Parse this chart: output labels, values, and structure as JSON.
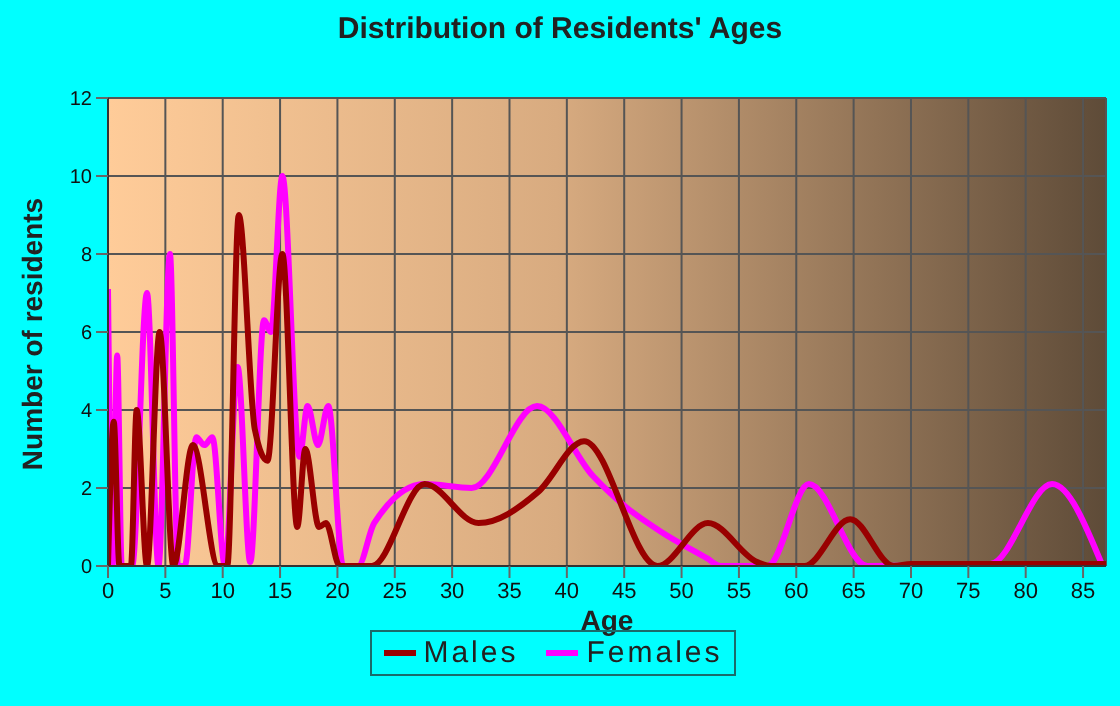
{
  "chart_data": {
    "type": "line",
    "title": "Distribution of Residents' Ages",
    "xlabel": "Age",
    "ylabel": "Number of residents",
    "xlim": [
      0,
      87
    ],
    "xticks": [
      0,
      5,
      10,
      15,
      20,
      25,
      30,
      35,
      40,
      45,
      50,
      55,
      60,
      65,
      70,
      75,
      80,
      85
    ],
    "ylim": [
      0,
      12
    ],
    "yticks": [
      0,
      2,
      4,
      6,
      8,
      10,
      12
    ],
    "grid": true,
    "legend": "bottom",
    "marker": "none",
    "line_style": "solid",
    "series": [
      {
        "name": "Males",
        "color": "#990000",
        "x": [
          0,
          0.5,
          1,
          2,
          2.5,
          3.4,
          4.5,
          5.7,
          7.4,
          9.6,
          10.4,
          11.4,
          12.8,
          13.9,
          15.2,
          16.5,
          17.2,
          18.4,
          19,
          20.2,
          23,
          27.6,
          32.3,
          37.5,
          41.5,
          47.9,
          52.3,
          56.6,
          57.8,
          60.7,
          64.7,
          68.5,
          70,
          80,
          87
        ],
        "values": [
          0,
          3.7,
          0,
          0,
          4,
          0,
          6,
          0,
          3.1,
          0,
          0,
          9,
          3.5,
          2.7,
          8,
          1,
          3,
          1,
          1.1,
          0,
          0,
          2.1,
          1.1,
          1.9,
          3.2,
          0,
          1.1,
          0.1,
          0,
          0,
          1.2,
          0,
          0.05,
          0.05,
          0.05
        ]
      },
      {
        "name": "Females",
        "color": "#ff00ff",
        "x": [
          0,
          0.4,
          0.8,
          1.2,
          2.1,
          3.4,
          4.4,
          5.4,
          6.1,
          6.7,
          7.7,
          8.4,
          9.1,
          10.2,
          11.3,
          12.4,
          13.6,
          14.2,
          15.2,
          16.7,
          17.4,
          18.3,
          19.2,
          20.5,
          21.8,
          23.2,
          27.6,
          31.7,
          37.4,
          42.3,
          45.2,
          48.1,
          52.2,
          53.4,
          57.5,
          61.1,
          66.2,
          76.9,
          82.3,
          86.7
        ],
        "values": [
          7.1,
          0,
          5.4,
          0,
          0,
          7,
          0,
          8,
          0,
          0,
          3.3,
          3.1,
          3.3,
          0,
          5.1,
          0.1,
          6.3,
          6,
          10,
          2.8,
          4.1,
          3.1,
          4.1,
          0,
          0,
          1.1,
          2.1,
          2,
          4.1,
          2.3,
          1.5,
          0.9,
          0.2,
          0,
          0,
          2.1,
          0,
          0.05,
          2.1,
          0
        ]
      }
    ]
  }
}
